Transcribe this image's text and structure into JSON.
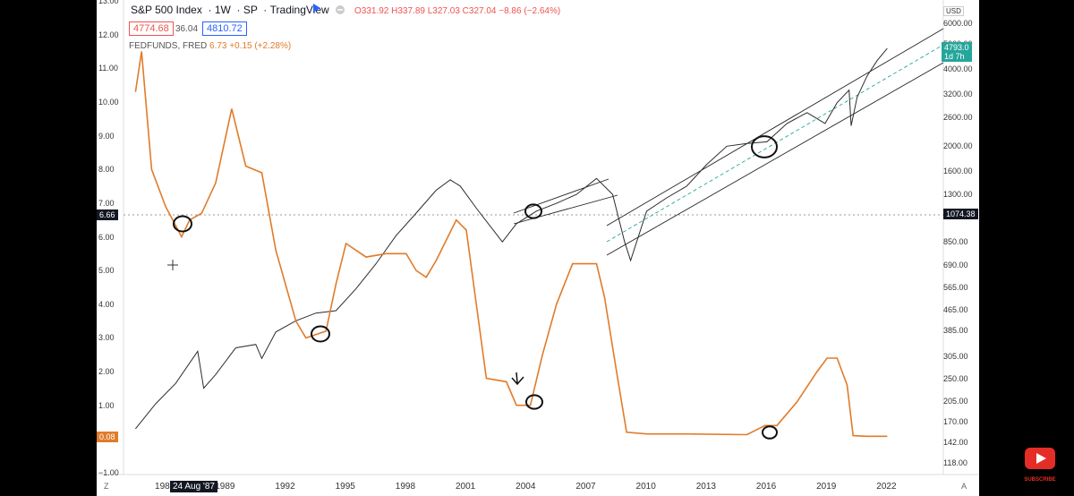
{
  "header": {
    "symbol": "S&P 500 Index",
    "interval": "1W",
    "exchange": "SP",
    "provider": "TradingView",
    "ohlc": "O331.92 H337.89 L327.03 C327.04 −8.86 (−2.64%)",
    "bid": "4774.68",
    "spread": "36.04",
    "ask": "4810.72"
  },
  "overlay": {
    "name": "FEDFUNDS, FRED",
    "value": "6.73",
    "change": "+0.15 (+2.28%)"
  },
  "left_axis": {
    "ticks": [
      "13.00",
      "12.00",
      "11.00",
      "10.00",
      "9.00",
      "8.00",
      "7.00",
      "6.00",
      "5.00",
      "4.00",
      "3.00",
      "2.00",
      "1.00",
      "−1.00"
    ],
    "crosshair_label": "6.66",
    "current_label": "0.08"
  },
  "right_axis": {
    "currency": "USD",
    "ticks": [
      "6000.00",
      "5000.00",
      "4000.00",
      "3200.00",
      "2600.00",
      "2000.00",
      "1600.00",
      "1300.00",
      "850.00",
      "690.00",
      "565.00",
      "465.00",
      "385.00",
      "305.00",
      "250.00",
      "205.00",
      "170.00",
      "142.00",
      "118.00"
    ],
    "crosshair_label": "1074.38",
    "price_label": "4793.0",
    "countdown": "1d 7h"
  },
  "x_axis": {
    "ticks": [
      "1986",
      "1989",
      "1992",
      "1995",
      "1998",
      "2001",
      "2004",
      "2007",
      "2010",
      "2013",
      "2016",
      "2019",
      "2022"
    ],
    "crosshair_label": "24 Aug '87",
    "reset_button": "Z",
    "auto_button": "A"
  },
  "chart_data": {
    "type": "line",
    "series": [
      {
        "name": "S&P 500 Index",
        "scale": "log",
        "x": [
          1984.5,
          1985.5,
          1986.5,
          1987.6,
          1987.9,
          1988.5,
          1989.5,
          1990.5,
          1990.8,
          1991.5,
          1992.5,
          1993.5,
          1994.5,
          1995.5,
          1996.5,
          1997.5,
          1998.5,
          1999.5,
          2000.2,
          2000.7,
          2001.5,
          2002.8,
          2003.5,
          2004.5,
          2005.5,
          2006.5,
          2007.5,
          2008.3,
          2008.9,
          2009.2,
          2010.0,
          2011.0,
          2012.0,
          2013.0,
          2014.0,
          2015.0,
          2016.0,
          2017.0,
          2018.0,
          2018.9,
          2019.5,
          2020.1,
          2020.2,
          2020.5,
          2021.0,
          2021.5,
          2022.0
        ],
        "y": [
          160,
          200,
          240,
          320,
          230,
          260,
          330,
          340,
          300,
          380,
          420,
          450,
          460,
          560,
          700,
          900,
          1100,
          1350,
          1480,
          1400,
          1150,
          850,
          1000,
          1120,
          1200,
          1300,
          1500,
          1300,
          850,
          720,
          1120,
          1260,
          1400,
          1700,
          2000,
          2050,
          2080,
          2450,
          2700,
          2450,
          2950,
          3300,
          2400,
          3100,
          3750,
          4300,
          4790
        ],
        "color": "#2c2c2c"
      },
      {
        "name": "FEDFUNDS, FRED",
        "x": [
          1984.5,
          1984.8,
          1985.3,
          1986.0,
          1986.8,
          1987.2,
          1987.8,
          1988.5,
          1989.3,
          1990.0,
          1990.8,
          1991.5,
          1992.5,
          1993.0,
          1994.0,
          1994.5,
          1995.0,
          1996.0,
          1997.0,
          1998.0,
          1998.5,
          1999.0,
          1999.5,
          2000.5,
          2001.0,
          2001.5,
          2002.0,
          2003.0,
          2003.5,
          2004.2,
          2004.8,
          2005.5,
          2006.3,
          2007.5,
          2007.9,
          2008.5,
          2009.0,
          2010.0,
          2012.0,
          2015.0,
          2015.9,
          2016.5,
          2017.5,
          2018.5,
          2019.0,
          2019.5,
          2020.0,
          2020.3,
          2021.0,
          2022.0
        ],
        "y": [
          10.3,
          11.5,
          8.0,
          6.9,
          6.0,
          6.5,
          6.7,
          7.6,
          9.8,
          8.1,
          7.9,
          5.6,
          3.5,
          3.0,
          3.2,
          4.6,
          5.8,
          5.4,
          5.5,
          5.5,
          5.0,
          4.8,
          5.3,
          6.5,
          6.2,
          4.0,
          1.8,
          1.7,
          1.0,
          1.0,
          2.5,
          4.0,
          5.2,
          5.2,
          4.2,
          2.0,
          0.2,
          0.15,
          0.15,
          0.13,
          0.4,
          0.4,
          1.1,
          2.0,
          2.4,
          2.4,
          1.6,
          0.1,
          0.08,
          0.08
        ],
        "color": "#e07b2a"
      }
    ],
    "xlim": [
      1983.9,
      2024.8
    ],
    "ylim_left": [
      -1.0,
      13.0
    ],
    "ylim_right_log": [
      110,
      7000
    ]
  },
  "colors": {
    "sp500": "#2c2c2c",
    "fedfunds": "#e07b2a",
    "price_tag": "#26a69a",
    "down_text": "#ef5350",
    "accent": "#2962ff"
  },
  "icons": {
    "flag": "flag-icon",
    "settings": "circle-menu-icon",
    "play": "youtube-play-icon"
  },
  "youtube": {
    "subscribe": "SUBSCRIBE"
  }
}
